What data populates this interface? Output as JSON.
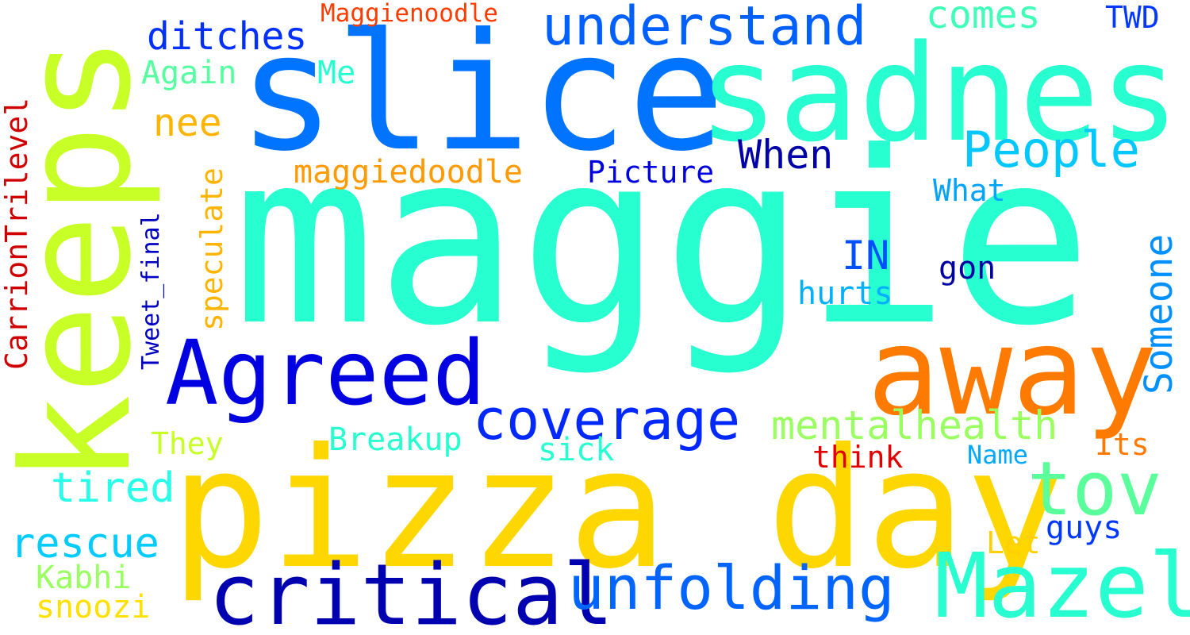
{
  "words": {
    "maggie": {
      "text": "maggie",
      "color": "#27ffd0"
    },
    "pizza_day": {
      "text": "pizza day",
      "color": "#ffd700"
    },
    "slice": {
      "text": "slice",
      "color": "#0073ff"
    },
    "keeps": {
      "text": "keeps",
      "color": "#c8ff27"
    },
    "sadness": {
      "text": "sadness",
      "color": "#27ffd0"
    },
    "away": {
      "text": "away",
      "color": "#ff7a00"
    },
    "agreed": {
      "text": "Agreed",
      "color": "#0000e0"
    },
    "critical": {
      "text": "critical",
      "color": "#0000b0"
    },
    "mazel": {
      "text": "Mazel",
      "color": "#27ffd0"
    },
    "tov": {
      "text": "tov",
      "color": "#5aff9c"
    },
    "unfolding": {
      "text": "unfolding",
      "color": "#0064ff"
    },
    "coverage": {
      "text": "coverage",
      "color": "#0028ff"
    },
    "understand": {
      "text": "understand",
      "color": "#0060ff"
    },
    "people": {
      "text": "People",
      "color": "#00c8ff"
    },
    "mentalhealth": {
      "text": "mentalhealth",
      "color": "#9aff60"
    },
    "someone": {
      "text": "Someone",
      "color": "#0090ff"
    },
    "ditches": {
      "text": "ditches",
      "color": "#0030ff"
    },
    "comes": {
      "text": "comes",
      "color": "#40ffb8"
    },
    "when": {
      "text": "When",
      "color": "#0000a8"
    },
    "nee": {
      "text": "nee",
      "color": "#ffb400"
    },
    "again": {
      "text": "Again",
      "color": "#56ffa0"
    },
    "me": {
      "text": "Me",
      "color": "#27ffd0"
    },
    "maggienoodle": {
      "text": "Maggienoodle",
      "color": "#ff3c00"
    },
    "twd": {
      "text": "TWD",
      "color": "#0038ff"
    },
    "maggiedoodle": {
      "text": "maggiedoodle",
      "color": "#ff9a00"
    },
    "picture": {
      "text": "Picture",
      "color": "#0000e0"
    },
    "what": {
      "text": "What",
      "color": "#00a4ff"
    },
    "in": {
      "text": "IN",
      "color": "#0050ff"
    },
    "gon": {
      "text": "gon",
      "color": "#0000a0"
    },
    "hurts": {
      "text": "hurts",
      "color": "#00b0ff"
    },
    "carriontrilevel": {
      "text": "CarrionTrilevel",
      "color": "#d00000"
    },
    "speculate": {
      "text": "speculate",
      "color": "#ffb400"
    },
    "tweet_final": {
      "text": "Tweet_final",
      "color": "#0000c0"
    },
    "breakup": {
      "text": "Breakup",
      "color": "#27ffd0"
    },
    "they": {
      "text": "They",
      "color": "#c8ff27"
    },
    "sick": {
      "text": "sick",
      "color": "#27ffd0"
    },
    "think": {
      "text": "think",
      "color": "#e00000"
    },
    "name": {
      "text": "Name",
      "color": "#00a8ff"
    },
    "its": {
      "text": "Its",
      "color": "#ff7a00"
    },
    "tired": {
      "text": "tired",
      "color": "#27ffe8"
    },
    "rescue": {
      "text": "rescue",
      "color": "#00ccff"
    },
    "guys": {
      "text": "guys",
      "color": "#0038ff"
    },
    "let": {
      "text": "Let",
      "color": "#ffd000"
    },
    "kabhi": {
      "text": "Kabhi",
      "color": "#9aff60"
    },
    "snoozi": {
      "text": "snoozi",
      "color": "#ffe000"
    }
  }
}
